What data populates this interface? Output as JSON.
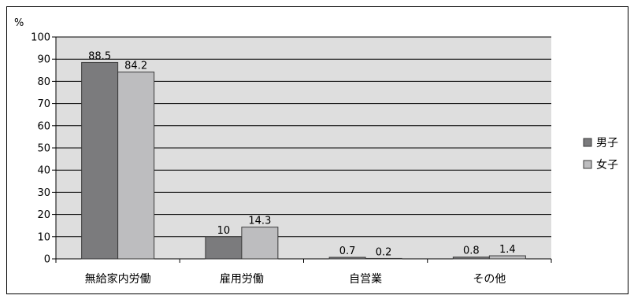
{
  "chart_data": {
    "type": "bar",
    "ylabel": "%",
    "ylim": [
      0,
      100
    ],
    "yticks": [
      0,
      10,
      20,
      30,
      40,
      50,
      60,
      70,
      80,
      90,
      100
    ],
    "categories": [
      "無給家内労働",
      "雇用労働",
      "自営業",
      "その他"
    ],
    "series": [
      {
        "name": "男子",
        "color": "#7b7b7d",
        "values": [
          88.5,
          10,
          0.7,
          0.8
        ],
        "labels": [
          "88.5",
          "10",
          "0.7",
          "0.8"
        ]
      },
      {
        "name": "女子",
        "color": "#bdbdbf",
        "values": [
          84.2,
          14.3,
          0.2,
          1.4
        ],
        "labels": [
          "84.2",
          "14.3",
          "0.2",
          "1.4"
        ]
      }
    ],
    "grid": true,
    "plot_background": "#dedede",
    "legend_position": "right"
  }
}
